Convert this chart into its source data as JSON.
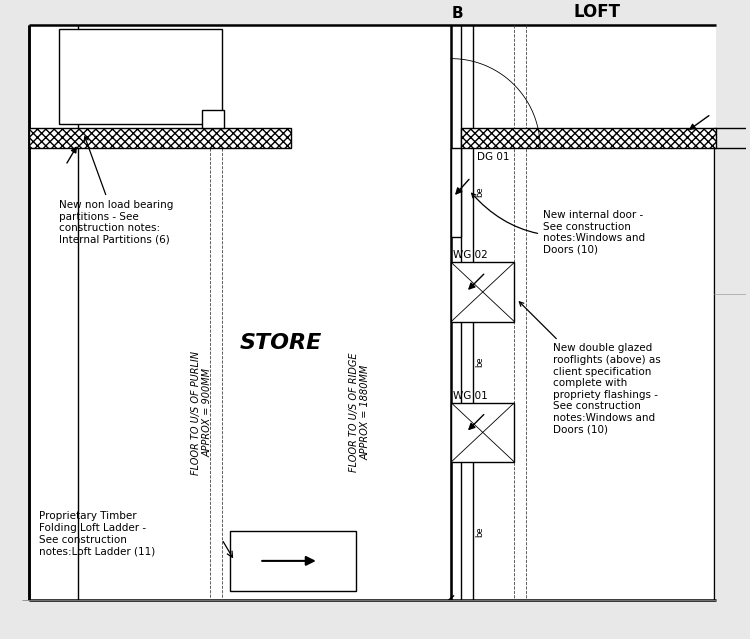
{
  "bg_color": "#e8e8e8",
  "drawing_bg": "#ffffff",
  "line_color": "#000000",
  "title_B": "B",
  "title_LOFT": "LOFT",
  "label_STORE": "STORE",
  "label_DG01": "DG 01",
  "label_WG02": "WG 02",
  "label_WG01": "WG 01",
  "note_partition": "New non load bearing\npartitions - See\nconstruction notes:\nInternal Partitions (6)",
  "note_door": "New internal door -\nSee construction\nnotes:Windows and\nDoors (10)",
  "note_rooflight": "New double glazed\nrooflights (above) as\nclient specification\ncomplete with\npropriety flashings -\nSee construction\nnotes:Windows and\nDoors (10)",
  "note_ladder": "Proprietary Timber\nFolding Loft Ladder -\nSee construction\nnotes:Loft Ladder (11)"
}
